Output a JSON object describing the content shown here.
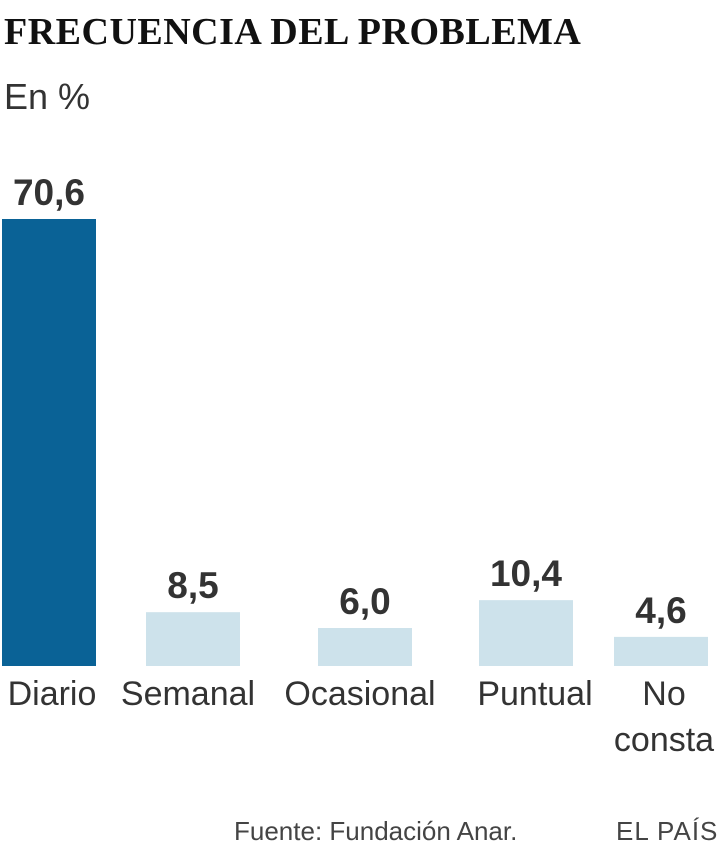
{
  "title": "FRECUENCIA DEL PROBLEMA",
  "subtitle": "En %",
  "chart_data": {
    "type": "bar",
    "title": "FRECUENCIA DEL PROBLEMA",
    "ylabel": "En %",
    "categories": [
      [
        "Diario"
      ],
      [
        "Semanal"
      ],
      [
        "Ocasional"
      ],
      [
        "Puntual"
      ],
      [
        "No",
        "consta"
      ]
    ],
    "values": [
      70.6,
      8.5,
      6.0,
      10.4,
      4.6
    ],
    "value_labels": [
      "70,6",
      "8,5",
      "6,0",
      "10,4",
      "4,6"
    ],
    "ylim": [
      0,
      70.6
    ],
    "grid": false,
    "colors": {
      "highlight": "#0a6296",
      "default": "#cde2eb"
    },
    "highlight_index": 0
  },
  "footer": {
    "source": "Fuente: Fundación Anar.",
    "brand": "EL PAÍS"
  }
}
